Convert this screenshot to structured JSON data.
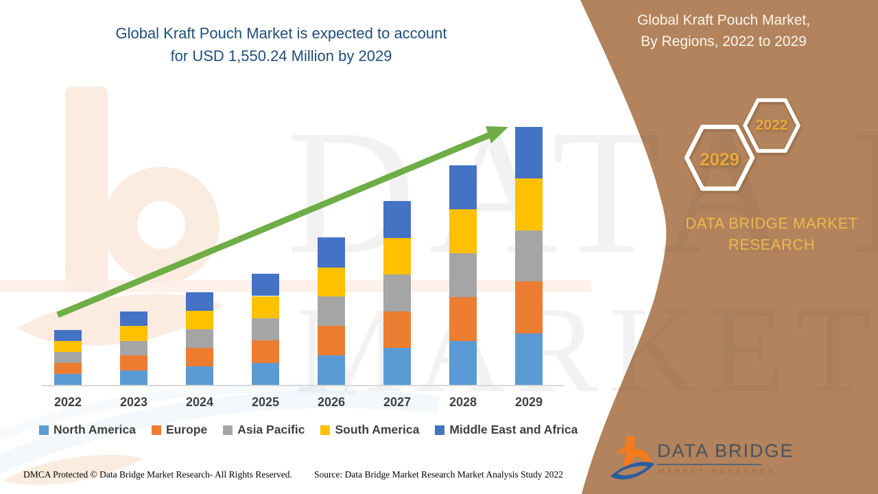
{
  "title": {
    "line1": "Global Kraft Pouch Market is expected to account",
    "line2": "for USD 1,550.24 Million by 2029"
  },
  "panel": {
    "heading_line1": "Global Kraft Pouch Market,",
    "heading_line2": "By Regions, 2022 to 2029",
    "hex_large_label": "2029",
    "hex_small_label": "2022",
    "brand_line1": "DATA BRIDGE MARKET",
    "brand_line2": "RESEARCH",
    "colors": {
      "background": "#b2835c",
      "gold_text": "#edb94d",
      "hex_border": "#ffffff",
      "heading_text": "#fdf6ec"
    }
  },
  "watermark": {
    "line1": "DATA BRIDGE",
    "line2": "MARKET RESEARCH"
  },
  "chart_data": {
    "type": "bar",
    "stacked": true,
    "title": "Global Kraft Pouch Market, By Regions, 2022 to 2029",
    "unit": "USD Million",
    "categories": [
      "2022",
      "2023",
      "2024",
      "2025",
      "2026",
      "2027",
      "2028",
      "2029"
    ],
    "series": [
      {
        "name": "North America",
        "color": "#5b9bd5",
        "values": [
          66,
          88,
          111,
          134,
          177,
          221,
          264,
          310
        ]
      },
      {
        "name": "Europe",
        "color": "#ed7d31",
        "values": [
          66,
          88,
          111,
          133,
          177,
          220,
          265,
          312
        ]
      },
      {
        "name": "Asia Pacific",
        "color": "#a5a5a5",
        "values": [
          66,
          88,
          111,
          133,
          176,
          221,
          263,
          306
        ]
      },
      {
        "name": "South America",
        "color": "#ffc000",
        "values": [
          66,
          89,
          112,
          134,
          177,
          221,
          264,
          312
        ]
      },
      {
        "name": "Middle East and Africa",
        "color": "#4472c4",
        "values": [
          66,
          88,
          112,
          134,
          178,
          222,
          264,
          310.24
        ]
      }
    ],
    "totals_estimated": [
      330,
      441,
      557,
      668,
      885,
      1105,
      1320,
      1550.24
    ],
    "xlabel": "",
    "ylabel": "",
    "grid": false,
    "legend_position": "bottom",
    "trend_arrow": {
      "color": "#6fad46",
      "direction": "up-right"
    }
  },
  "footer": {
    "dmca": "DMCA Protected © Data Bridge Market Research- All Rights Reserved.",
    "source": "Source: Data Bridge Market Research Market Analysis Study 2022"
  },
  "logo": {
    "name": "DATA BRIDGE",
    "subtitle": "MARKET RESEARCH"
  }
}
